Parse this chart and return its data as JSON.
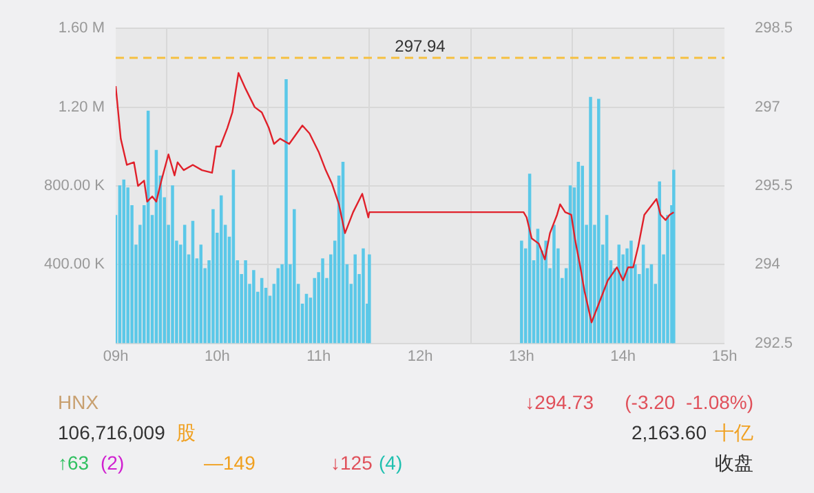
{
  "chart_data": {
    "type": "bar",
    "xlim": [
      9,
      15
    ],
    "xticks": [
      {
        "value": 9,
        "label": "09h"
      },
      {
        "value": 10,
        "label": "10h"
      },
      {
        "value": 11,
        "label": "11h"
      },
      {
        "value": 12,
        "label": "12h"
      },
      {
        "value": 13,
        "label": "13h"
      },
      {
        "value": 14,
        "label": "14h"
      },
      {
        "value": 15,
        "label": "15h"
      }
    ],
    "ylim": [
      0,
      1600000
    ],
    "yticks": [
      {
        "value": 0,
        "label": null
      },
      {
        "value": 400000,
        "label": "400.00 K"
      },
      {
        "value": 800000,
        "label": "800.00 K"
      },
      {
        "value": 1200000,
        "label": "1.20 M"
      },
      {
        "value": 1600000,
        "label": "1.60 M"
      }
    ],
    "y2lim": [
      292.5,
      298.5
    ],
    "y2ticks": [
      292.5,
      294,
      295.5,
      297,
      298.5
    ],
    "grid": true,
    "legend": false,
    "marker": "none",
    "line_style": "solid",
    "series": [
      {
        "color": "#5bc8e8",
        "x": [
          9.0,
          9.04,
          9.08,
          9.12,
          9.16,
          9.2,
          9.24,
          9.28,
          9.32,
          9.36,
          9.4,
          9.44,
          9.48,
          9.52,
          9.56,
          9.6,
          9.64,
          9.68,
          9.72,
          9.76,
          9.8,
          9.84,
          9.88,
          9.92,
          9.96,
          10.0,
          10.04,
          10.08,
          10.12,
          10.16,
          10.2,
          10.24,
          10.28,
          10.32,
          10.36,
          10.4,
          10.44,
          10.48,
          10.52,
          10.56,
          10.6,
          10.64,
          10.68,
          10.72,
          10.76,
          10.8,
          10.84,
          10.88,
          10.92,
          10.96,
          11.0,
          11.04,
          11.08,
          11.12,
          11.16,
          11.2,
          11.24,
          11.28,
          11.32,
          11.36,
          11.4,
          11.44,
          11.48,
          11.5,
          13.0,
          13.04,
          13.08,
          13.12,
          13.16,
          13.2,
          13.24,
          13.28,
          13.32,
          13.36,
          13.4,
          13.44,
          13.48,
          13.52,
          13.56,
          13.6,
          13.64,
          13.68,
          13.72,
          13.76,
          13.8,
          13.84,
          13.88,
          13.92,
          13.96,
          14.0,
          14.04,
          14.08,
          14.12,
          14.16,
          14.2,
          14.24,
          14.28,
          14.32,
          14.36,
          14.4,
          14.44,
          14.48,
          14.5
        ],
        "values": [
          650000,
          800000,
          830000,
          790000,
          700000,
          500000,
          600000,
          700000,
          1180000,
          650000,
          980000,
          850000,
          740000,
          600000,
          800000,
          520000,
          500000,
          600000,
          450000,
          620000,
          430000,
          500000,
          380000,
          420000,
          680000,
          560000,
          750000,
          600000,
          540000,
          880000,
          420000,
          350000,
          420000,
          300000,
          370000,
          260000,
          330000,
          280000,
          240000,
          300000,
          380000,
          400000,
          1340000,
          400000,
          680000,
          300000,
          200000,
          250000,
          230000,
          330000,
          360000,
          430000,
          330000,
          450000,
          520000,
          850000,
          920000,
          400000,
          300000,
          450000,
          350000,
          480000,
          200000,
          450000,
          520000,
          480000,
          860000,
          420000,
          580000,
          470000,
          520000,
          380000,
          600000,
          480000,
          330000,
          380000,
          800000,
          790000,
          920000,
          900000,
          600000,
          1250000,
          600000,
          1240000,
          500000,
          650000,
          420000,
          380000,
          500000,
          450000,
          480000,
          520000,
          400000,
          350000,
          500000,
          380000,
          400000,
          300000,
          820000,
          450000,
          650000,
          700000,
          880000
        ]
      },
      {
        "type": "line",
        "axis": "y2",
        "color": "#e0202a",
        "x": [
          9.0,
          9.05,
          9.11,
          9.18,
          9.22,
          9.28,
          9.31,
          9.36,
          9.4,
          9.45,
          9.52,
          9.58,
          9.61,
          9.67,
          9.76,
          9.85,
          9.95,
          9.99,
          10.03,
          10.1,
          10.15,
          10.21,
          10.28,
          10.37,
          10.44,
          10.51,
          10.56,
          10.62,
          10.71,
          10.84,
          10.91,
          11.0,
          11.07,
          11.13,
          11.2,
          11.26,
          11.34,
          11.43,
          11.49,
          11.5,
          13.0,
          13.02,
          13.05,
          13.1,
          13.17,
          13.23,
          13.28,
          13.35,
          13.38,
          13.43,
          13.49,
          13.53,
          13.58,
          13.62,
          13.69,
          13.78,
          13.85,
          13.94,
          14.0,
          14.05,
          14.1,
          14.15,
          14.21,
          14.33,
          14.37,
          14.42,
          14.46,
          14.5
        ],
        "values": [
          297.4,
          296.4,
          295.9,
          295.95,
          295.5,
          295.6,
          295.2,
          295.3,
          295.2,
          295.6,
          296.1,
          295.7,
          295.95,
          295.8,
          295.9,
          295.8,
          295.75,
          296.25,
          296.25,
          296.6,
          296.9,
          297.65,
          297.35,
          297.0,
          296.9,
          296.6,
          296.3,
          296.4,
          296.3,
          296.65,
          296.5,
          296.15,
          295.8,
          295.55,
          295.15,
          294.6,
          295.0,
          295.35,
          294.9,
          295.0,
          295.0,
          295.0,
          294.9,
          294.5,
          294.4,
          294.1,
          294.6,
          294.95,
          295.15,
          295.0,
          294.95,
          294.45,
          293.95,
          293.5,
          292.9,
          293.35,
          293.7,
          293.95,
          293.7,
          293.95,
          293.95,
          294.35,
          294.95,
          295.25,
          294.95,
          294.85,
          294.95,
          295.0
        ]
      }
    ],
    "ref_lines": [
      {
        "axis": "y2",
        "value": 297.94,
        "label": "297.94",
        "color": "#f5c040",
        "line_style": "dashed"
      }
    ],
    "annotations": [
      "HNX",
      "↓294.73",
      "(-3.20  -1.08%)",
      "106,716,009",
      "股",
      "2,163.60",
      "十亿",
      "↑63",
      "(2)",
      "—149",
      "↓125",
      "(4)",
      "收盘"
    ]
  }
}
